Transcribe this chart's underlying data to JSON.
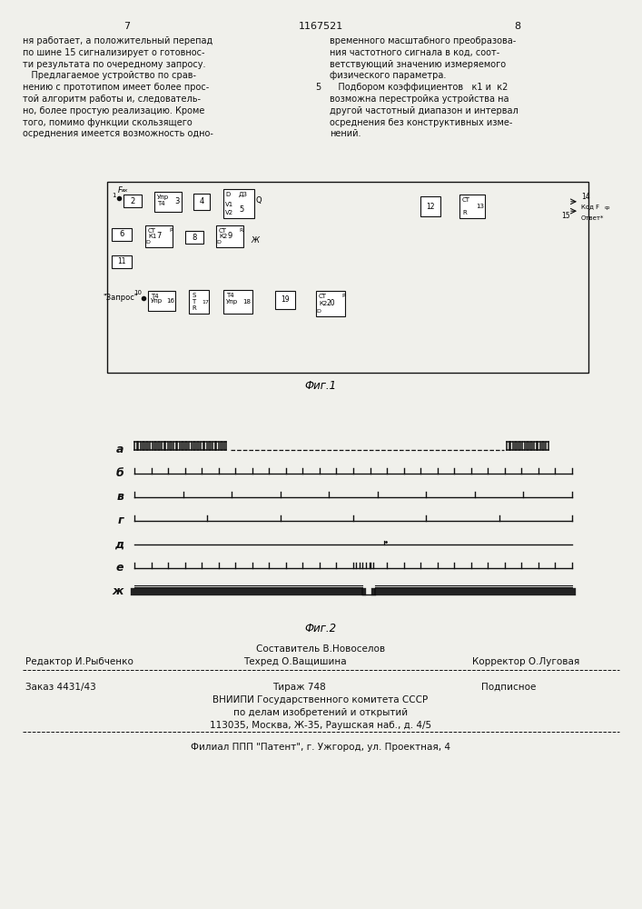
{
  "page_width": 7.07,
  "page_height": 10.0,
  "bg_color": "#f0f0eb",
  "header_number_left": "7",
  "header_title": "1167521",
  "header_number_right": "8",
  "col_left_text": [
    "ня работает, а положительный перепад",
    "по шине 15 сигнализирует о готовнос-",
    "ти результата по очередному запросу.",
    "   Предлагаемое устройство по срав-",
    "нению с прототипом имеет более прос-",
    "той алгоритм работы и, следователь-",
    "но, более простую реализацию. Кроме",
    "того, помимо функции скользящего",
    "осреднения имеется возможность одно-"
  ],
  "col_right_text": [
    "временного масштабного преобразова-",
    "ния частотного сигнала в код, соот-",
    "ветствующий значению измеряемого",
    "физического параметра.",
    "   Подбором коэффициентов   к1 и  к2",
    "возможна перестройка устройства на",
    "другой частотный диапазон и интервал",
    "осреднения без конструктивных изме-",
    "нений."
  ],
  "col_center_number": "5",
  "fig1_caption": "Фиг.1",
  "fig2_caption": "Фиг.2",
  "fig2_labels": [
    "а",
    "б",
    "в",
    "г",
    "д",
    "е",
    "ж"
  ],
  "footer_composer": "Составитель В.Новоселов",
  "footer_editor": "Редактор И.Рыбченко",
  "footer_techred": "Техред О.Ващишина",
  "footer_corrector": "Корректор О.Луговая",
  "footer_order": "Заказ 4431/43",
  "footer_tirage": "Тираж 748",
  "footer_podpisnoe": "Подписное",
  "footer_org1": "ВНИИПИ Государственного комитета СССР",
  "footer_org2": "по делам изобретений и открытий",
  "footer_org3": "113035, Москва, Ж-35, Раушская наб., д. 4/5",
  "footer_branch": "Филиал ППП \"Патент\", г. Ужгород, ул. Проектная, 4"
}
